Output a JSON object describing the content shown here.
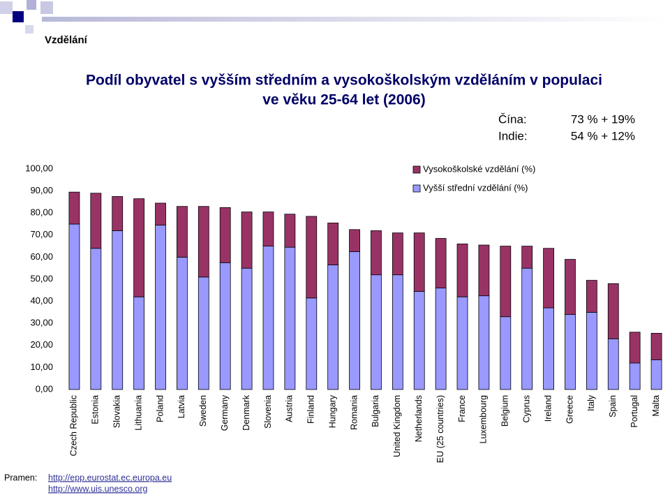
{
  "slide": {
    "section": "Vzdělání",
    "title": [
      "Podíl obyvatel s vyšším středním a vysokoškolským vzděláním v populaci",
      "ve věku 25-64 let (2006)"
    ],
    "notes": [
      {
        "label": "Čína:",
        "value": "73 % + 19%"
      },
      {
        "label": "Indie:",
        "value": "54 % + 12%"
      }
    ],
    "source": {
      "label": "Pramen:",
      "links": [
        "http://epp.eurostat.ec.europa.eu",
        "http://www.uis.unesco.org"
      ]
    }
  },
  "chart_data": {
    "type": "stacked_bar",
    "categories": [
      "Czech Republic",
      "Estonia",
      "Slovakia",
      "Lithuania",
      "Poland",
      "Latvia",
      "Sweden",
      "Germany",
      "Denmark",
      "Slovenia",
      "Austria",
      "Finland",
      "Hungary",
      "Romania",
      "Bulgaria",
      "United Kingdom",
      "Netherlands",
      "EU (25 countries)",
      "France",
      "Luxembourg",
      "Belgium",
      "Cyprus",
      "Ireland",
      "Greece",
      "Italy",
      "Spain",
      "Portugal",
      "Malta"
    ],
    "series": [
      {
        "name": "Vyšší střední vzdělání (%)",
        "color": "#9999ff",
        "values": [
          75,
          64,
          72,
          42,
          74.5,
          60,
          51,
          57.5,
          55,
          65,
          64.5,
          41.5,
          56.5,
          62.5,
          52,
          52,
          44.5,
          46,
          42,
          42.5,
          33,
          55,
          37,
          34,
          35,
          23,
          12,
          13.5
        ]
      },
      {
        "name": "Vysokoškolské vzdělání (%)",
        "color": "#993366",
        "values": [
          14.5,
          25,
          15.5,
          44.5,
          10,
          23,
          32,
          25,
          25.5,
          15.5,
          15,
          37,
          19,
          10,
          20,
          19,
          26.5,
          22.5,
          24,
          23,
          32,
          10,
          27,
          25,
          14.5,
          25,
          14,
          12
        ]
      }
    ],
    "ylim": [
      0,
      100
    ],
    "yticks": [
      {
        "value": 0,
        "label": "0,00"
      },
      {
        "value": 10,
        "label": "10,00"
      },
      {
        "value": 20,
        "label": "20,00"
      },
      {
        "value": 30,
        "label": "30,00"
      },
      {
        "value": 40,
        "label": "40,00"
      },
      {
        "value": 50,
        "label": "50,00"
      },
      {
        "value": 60,
        "label": "60,00"
      },
      {
        "value": 70,
        "label": "70,00"
      },
      {
        "value": 80,
        "label": "80,00"
      },
      {
        "value": 90,
        "label": "90,00"
      },
      {
        "value": 100,
        "label": "100,00"
      }
    ],
    "grid": false,
    "legend": "top-right"
  }
}
